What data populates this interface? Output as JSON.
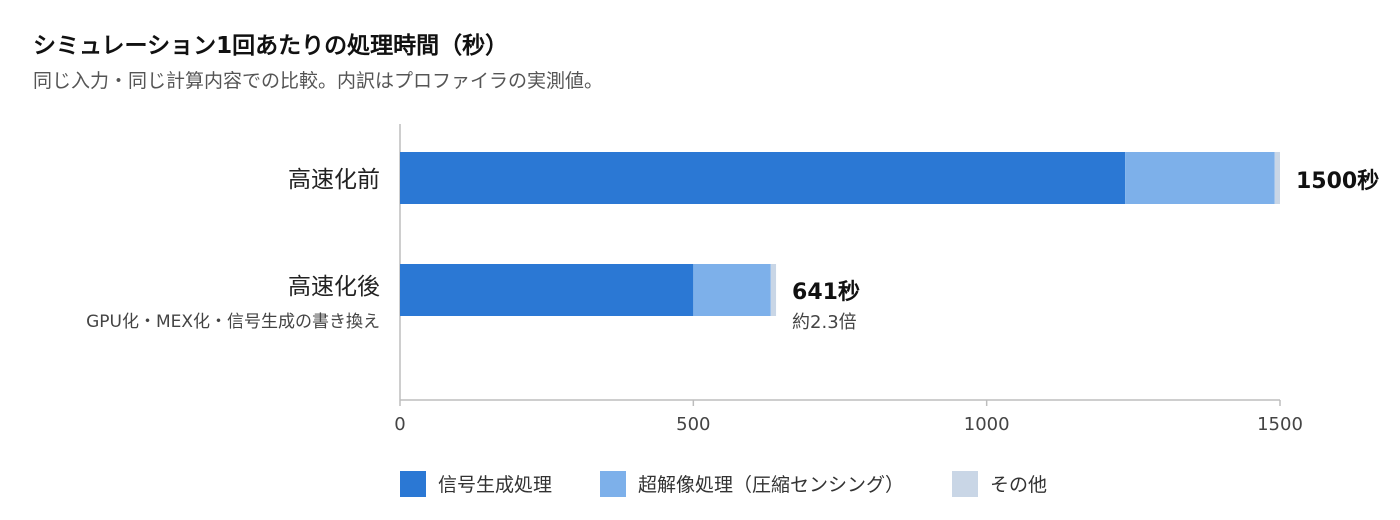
{
  "title": "シミュレーション1回あたりの処理時間（秒）",
  "subtitle": "同じ入力・同じ計算内容での比較。内訳はプロファイラの実測値。",
  "chart_data": {
    "type": "bar",
    "orientation": "horizontal",
    "stacked": true,
    "categories": [
      "高速化前",
      "高速化後"
    ],
    "category_sublabels": [
      "",
      "GPU化・MEX化・信号生成の書き換え"
    ],
    "series": [
      {
        "name": "信号生成処理",
        "color": "#2b78d4",
        "values": [
          1236,
          500
        ]
      },
      {
        "name": "超解像処理（圧縮センシング）",
        "color": "#7db0ea",
        "values": [
          255,
          132
        ]
      },
      {
        "name": "その他",
        "color": "#c9d6e6",
        "values": [
          9,
          9
        ]
      }
    ],
    "totals": [
      1500,
      641
    ],
    "total_labels": [
      "1500秒",
      "641秒"
    ],
    "annotations": [
      "",
      "約2.3倍"
    ],
    "xlim": [
      0,
      1500
    ],
    "xticks": [
      0,
      500,
      1000,
      1500
    ],
    "grid": false,
    "legend_position": "bottom"
  }
}
